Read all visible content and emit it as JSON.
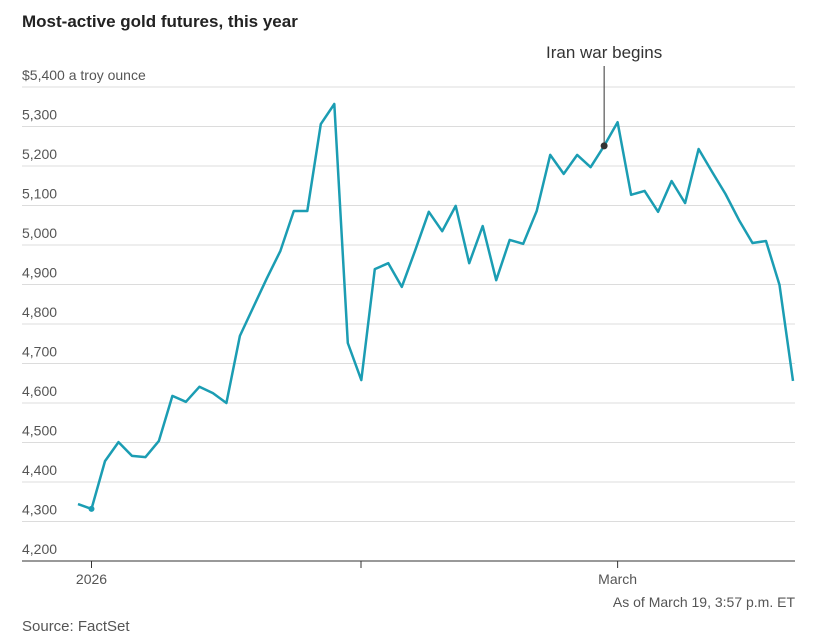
{
  "chart_data": {
    "type": "line",
    "title": "Most-active gold futures, this year",
    "note": "As of March 19, 3:57 p.m. ET",
    "source": "Source: FactSet",
    "annotations": [
      {
        "text": "Iran war begins"
      }
    ],
    "categories": [
      null,
      "2026",
      null,
      null,
      null,
      null,
      null,
      null,
      null,
      null,
      null,
      null,
      null,
      null,
      null,
      null,
      null,
      null,
      null,
      null,
      null,
      null,
      null,
      null,
      null,
      null,
      null,
      null,
      null,
      null,
      null,
      null,
      null,
      null,
      null,
      null,
      null,
      null,
      null,
      null,
      "March",
      null,
      null,
      null,
      null,
      null,
      null,
      null,
      null,
      null,
      null,
      null,
      null,
      null
    ],
    "series": [
      {
        "name": "Gold futures",
        "color": "#1b9db3",
        "values": [
          4344,
          4332,
          4453,
          4501,
          4466,
          4463,
          4504,
          4618,
          4603,
          4641,
          4625,
          4600,
          4770,
          4843,
          4916,
          4985,
          5086,
          5086,
          5306,
          5357,
          4752,
          4658,
          4939,
          4954,
          4894,
          4987,
          5084,
          5035,
          5099,
          4954,
          5048,
          4911,
          5013,
          5003,
          5086,
          5228,
          5180,
          5228,
          5197,
          5251,
          5311,
          5127,
          5137,
          5084,
          5162,
          5106,
          5243,
          5185,
          5129,
          5063,
          5005,
          5010,
          4899,
          4656
        ]
      }
    ],
    "ylim": [
      4200,
      5400
    ],
    "yticks": [
      {
        "value": 4200,
        "label": "4,200"
      },
      {
        "value": 4300,
        "label": "4,300"
      },
      {
        "value": 4400,
        "label": "4,400"
      },
      {
        "value": 4500,
        "label": "4,500"
      },
      {
        "value": 4600,
        "label": "4,600"
      },
      {
        "value": 4700,
        "label": "4,700"
      },
      {
        "value": 4800,
        "label": "4,800"
      },
      {
        "value": 4900,
        "label": "4,900"
      },
      {
        "value": 5000,
        "label": "5,000"
      },
      {
        "value": 5100,
        "label": "5,100"
      },
      {
        "value": 5200,
        "label": "5,200"
      },
      {
        "value": 5300,
        "label": "5,300"
      },
      {
        "value": 5400,
        "label": "$5,400 a troy ounce"
      }
    ],
    "grid": true
  }
}
